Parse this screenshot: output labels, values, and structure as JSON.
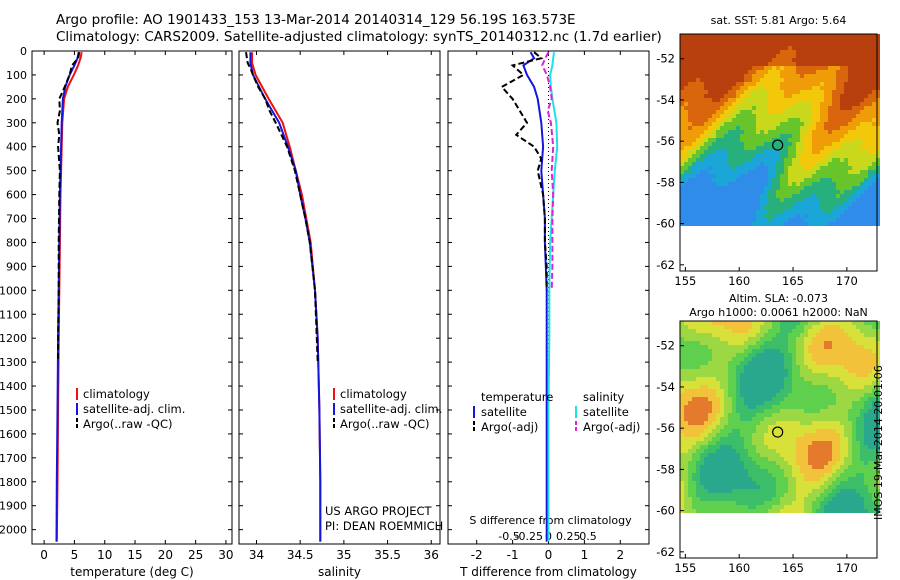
{
  "header": {
    "line1": "Argo profile: AO 1901433_153 13-Mar-2014 20140314_129 56.19S 163.573E",
    "line2": "Climatology: CARS2009. Satellite-adjusted climatology: synTS_20140312.nc (1.7d earlier)"
  },
  "colors": {
    "climatology": "#ee1111",
    "satellite": "#1515dd",
    "argo": "#000000",
    "sal_satellite": "#22e0e8",
    "sal_argo": "#dd22dd"
  },
  "chart_data": [
    {
      "type": "line",
      "name": "temperature-profile",
      "xlabel": "temperature (deg C)",
      "ylabel": "",
      "xlim": [
        -2,
        31
      ],
      "ylim": [
        2060,
        0
      ],
      "xticks": [
        "0",
        "5",
        "10",
        "15",
        "20",
        "25",
        "30"
      ],
      "yticks": [
        "0",
        "100",
        "200",
        "300",
        "400",
        "500",
        "600",
        "700",
        "800",
        "900",
        "1000",
        "1100",
        "1200",
        "1300",
        "1400",
        "1500",
        "1600",
        "1700",
        "1800",
        "1900",
        "2000"
      ],
      "legend": [
        "climatology",
        "satellite-adj. clim.",
        "Argo(..raw -QC)"
      ],
      "series": [
        {
          "name": "climatology",
          "depth": [
            5,
            30,
            60,
            100,
            150,
            200,
            300,
            400,
            500,
            600,
            800,
            1000,
            1200,
            1500,
            1800,
            2050
          ],
          "values": [
            6.2,
            6.0,
            5.6,
            4.9,
            3.9,
            3.3,
            3.0,
            2.9,
            2.8,
            2.7,
            2.6,
            2.5,
            2.4,
            2.3,
            2.2,
            2.1
          ]
        },
        {
          "name": "satellite-adj. clim.",
          "depth": [
            5,
            30,
            60,
            100,
            150,
            200,
            300,
            400,
            500,
            600,
            800,
            1000,
            1200,
            1500,
            1800,
            2050
          ],
          "values": [
            5.7,
            5.5,
            5.0,
            4.2,
            3.5,
            3.1,
            2.9,
            2.8,
            2.7,
            2.6,
            2.5,
            2.4,
            2.3,
            2.2,
            2.1,
            2.05
          ]
        },
        {
          "name": "Argo(..raw -QC)",
          "depth": [
            5,
            30,
            60,
            100,
            150,
            200,
            250,
            300,
            350,
            400,
            500,
            600,
            800,
            1000,
            1200,
            1300
          ],
          "values": [
            5.8,
            5.6,
            4.6,
            4.2,
            3.4,
            2.5,
            2.6,
            2.2,
            2.5,
            2.3,
            2.6,
            2.5,
            2.4,
            2.4,
            2.3,
            2.3
          ]
        }
      ]
    },
    {
      "type": "line",
      "name": "salinity-profile",
      "xlabel": "salinity",
      "xlim": [
        33.8,
        36.1
      ],
      "ylim": [
        2060,
        0
      ],
      "xticks": [
        "34",
        "34.5",
        "35",
        "35.5",
        "36"
      ],
      "legend": [
        "climatology",
        "satellite-adj. clim.",
        "Argo(..raw -QC)"
      ],
      "annotations": [
        "US ARGO PROJECT",
        "PI: DEAN ROEMMICH"
      ],
      "series": [
        {
          "name": "climatology",
          "depth": [
            5,
            50,
            100,
            200,
            300,
            400,
            500,
            600,
            700,
            800,
            1000,
            1200,
            1500,
            1800,
            2050
          ],
          "values": [
            33.95,
            33.95,
            33.99,
            34.14,
            34.3,
            34.38,
            34.45,
            34.52,
            34.57,
            34.62,
            34.67,
            34.7,
            34.72,
            34.73,
            34.73
          ]
        },
        {
          "name": "satellite-adj. clim.",
          "depth": [
            5,
            50,
            100,
            200,
            300,
            400,
            500,
            600,
            700,
            800,
            1000,
            1200,
            1500,
            1800,
            2050
          ],
          "values": [
            33.93,
            33.93,
            33.96,
            34.1,
            34.26,
            34.36,
            34.45,
            34.5,
            34.56,
            34.61,
            34.67,
            34.7,
            34.72,
            34.73,
            34.73
          ]
        },
        {
          "name": "Argo(..raw -QC)",
          "depth": [
            5,
            50,
            80,
            100,
            150,
            200,
            250,
            300,
            400,
            500,
            600,
            700,
            800,
            1000,
            1100,
            1200,
            1300
          ],
          "values": [
            33.88,
            33.9,
            33.94,
            33.96,
            34.02,
            34.1,
            34.15,
            34.22,
            34.35,
            34.44,
            34.5,
            34.56,
            34.61,
            34.67,
            34.68,
            34.69,
            34.7
          ]
        }
      ]
    },
    {
      "type": "line",
      "name": "difference-profile",
      "xlabel": "T difference from climatology",
      "xlabel_top": "S difference from climatology",
      "xlim": [
        -2.8,
        2.8
      ],
      "ylim": [
        2060,
        0
      ],
      "xticks": [
        "-2",
        "-1",
        "0",
        "1",
        "2"
      ],
      "xticks_top": [
        "-0.5",
        "-0.25",
        "0",
        "0.25",
        "0.5"
      ],
      "legend_titles": [
        "temperature",
        "salinity"
      ],
      "legend": [
        "satellite",
        "Argo(-adj)",
        "satellite",
        "Argo(-adj)"
      ],
      "series": [
        {
          "name": "T satellite",
          "depth": [
            5,
            30,
            60,
            100,
            150,
            200,
            300,
            400,
            500,
            600,
            700,
            800,
            1000,
            1200,
            1500,
            2050
          ],
          "values": [
            -0.5,
            -0.4,
            -0.7,
            -0.6,
            -0.4,
            -0.3,
            -0.2,
            -0.15,
            -0.2,
            -0.15,
            -0.1,
            -0.1,
            -0.05,
            -0.05,
            -0.05,
            -0.05
          ]
        },
        {
          "name": "T Argo(-adj)",
          "depth": [
            5,
            30,
            60,
            100,
            150,
            200,
            250,
            300,
            350,
            400,
            450,
            500,
            600,
            700,
            800,
            900,
            1000
          ],
          "values": [
            -0.4,
            -0.2,
            -1.0,
            -0.7,
            -1.3,
            -1.0,
            -0.8,
            -0.6,
            -0.9,
            -0.4,
            -0.2,
            -0.3,
            -0.15,
            -0.1,
            -0.1,
            -0.05,
            -0.05
          ]
        },
        {
          "name": "S satellite",
          "depth": [
            5,
            30,
            60,
            100,
            150,
            200,
            300,
            400,
            500,
            600,
            700,
            800,
            1000,
            1200,
            1500,
            2050
          ],
          "values": [
            0.07,
            0.06,
            0.05,
            0.02,
            0.03,
            0.05,
            0.1,
            0.11,
            0.08,
            0.06,
            0.04,
            0.02,
            0.01,
            0.01,
            0.0,
            0.0
          ]
        },
        {
          "name": "S Argo(-adj)",
          "depth": [
            5,
            30,
            60,
            100,
            150,
            200,
            250,
            300,
            400,
            500,
            600,
            700,
            800,
            900,
            1000
          ],
          "values": [
            0.0,
            -0.04,
            -0.08,
            -0.02,
            0.02,
            0.04,
            -0.01,
            0.03,
            0.06,
            0.04,
            0.06,
            0.05,
            0.05,
            0.05,
            0.04
          ]
        }
      ]
    },
    {
      "type": "heatmap",
      "name": "sst-map",
      "title": "sat. SST: 5.81  Argo: 5.64",
      "xlim": [
        154.5,
        172.8
      ],
      "ylim": [
        -62.3,
        -50.8
      ],
      "xticks": [
        "155",
        "160",
        "165",
        "170"
      ],
      "yticks": [
        "-52",
        "-54",
        "-56",
        "-58",
        "-60",
        "-62"
      ],
      "data_extent_lat": [
        -60,
        -50.8
      ],
      "float_position": {
        "lon": 163.573,
        "lat": -56.19
      }
    },
    {
      "type": "heatmap",
      "name": "sla-map",
      "title1": "Altim. SLA: -0.073",
      "title2": "Argo h1000: 0.0061 h2000: NaN",
      "xlim": [
        154.5,
        172.8
      ],
      "ylim": [
        -62.3,
        -50.8
      ],
      "xticks": [
        "155",
        "160",
        "165",
        "170"
      ],
      "yticks": [
        "-52",
        "-54",
        "-56",
        "-58",
        "-60",
        "-62"
      ],
      "data_extent_lat": [
        -60,
        -50.8
      ],
      "float_position": {
        "lon": 163.573,
        "lat": -56.19
      }
    }
  ],
  "stamp": "IMOS 19-Mar-2014 20:01:06"
}
